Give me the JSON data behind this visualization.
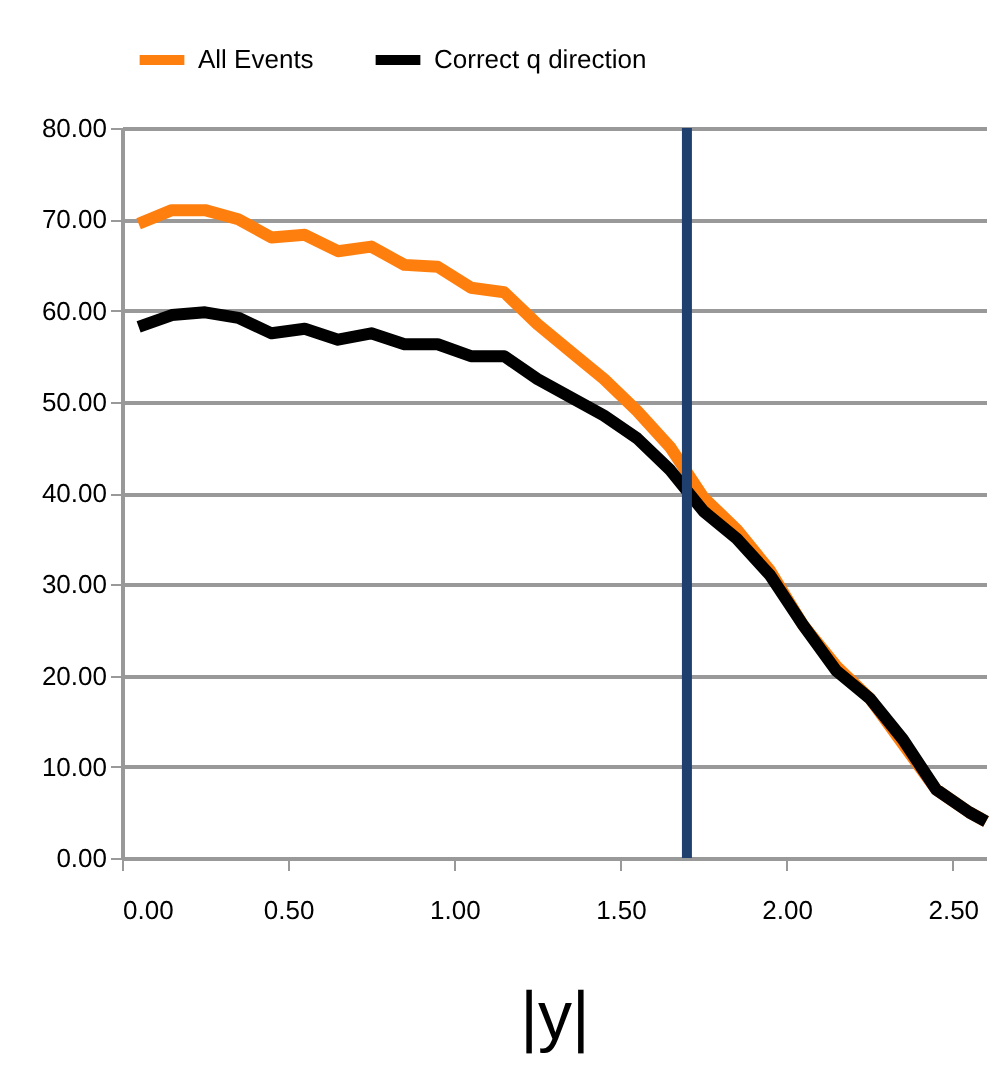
{
  "chart_data": {
    "type": "line",
    "xlabel": "|y|",
    "x": [
      0.05,
      0.15,
      0.25,
      0.35,
      0.45,
      0.55,
      0.65,
      0.75,
      0.85,
      0.95,
      1.05,
      1.15,
      1.25,
      1.35,
      1.45,
      1.55,
      1.65,
      1.75,
      1.85,
      1.95,
      2.05,
      2.15,
      2.25,
      2.35,
      2.45,
      2.55,
      2.6
    ],
    "series": [
      {
        "name": "All Events",
        "color": "#ff7f0e",
        "values": [
          69.5,
          71,
          71,
          70,
          68,
          68.3,
          66.5,
          67,
          65,
          64.8,
          62.5,
          62,
          58.5,
          55.5,
          52.5,
          49,
          45,
          39.5,
          36,
          31.5,
          25.5,
          21,
          17.5,
          12.5,
          7.5,
          5,
          4
        ]
      },
      {
        "name": "Correct q direction",
        "color": "#000000",
        "values": [
          58.2,
          59.5,
          59.8,
          59.2,
          57.5,
          58,
          56.8,
          57.5,
          56.3,
          56.3,
          55,
          55,
          52.5,
          50.5,
          48.5,
          46,
          42.5,
          38,
          35,
          31,
          25.5,
          20.5,
          17.5,
          13,
          7.5,
          5,
          4
        ]
      }
    ],
    "xlim": [
      0,
      2.6
    ],
    "xticks": [
      {
        "value": 0,
        "label": "0.00"
      },
      {
        "value": 0.5,
        "label": "0.50"
      },
      {
        "value": 1,
        "label": "1.00"
      },
      {
        "value": 1.5,
        "label": "1.50"
      },
      {
        "value": 2,
        "label": "2.00"
      },
      {
        "value": 2.5,
        "label": "2.50"
      }
    ],
    "ylim": [
      0,
      80
    ],
    "yticks": [
      {
        "value": 0,
        "label": "0.00"
      },
      {
        "value": 10,
        "label": "10.00"
      },
      {
        "value": 20,
        "label": "20.00"
      },
      {
        "value": 30,
        "label": "30.00"
      },
      {
        "value": 40,
        "label": "40.00"
      },
      {
        "value": 50,
        "label": "50.00"
      },
      {
        "value": 60,
        "label": "60.00"
      },
      {
        "value": 70,
        "label": "70.00"
      },
      {
        "value": 80,
        "label": "80.00"
      }
    ],
    "grid": "y",
    "legend": "top",
    "marker": "none",
    "line_style": "solid",
    "ref_lines": [
      {
        "axis": "x",
        "value": 1.7,
        "color": "#1f3f6e"
      }
    ]
  }
}
